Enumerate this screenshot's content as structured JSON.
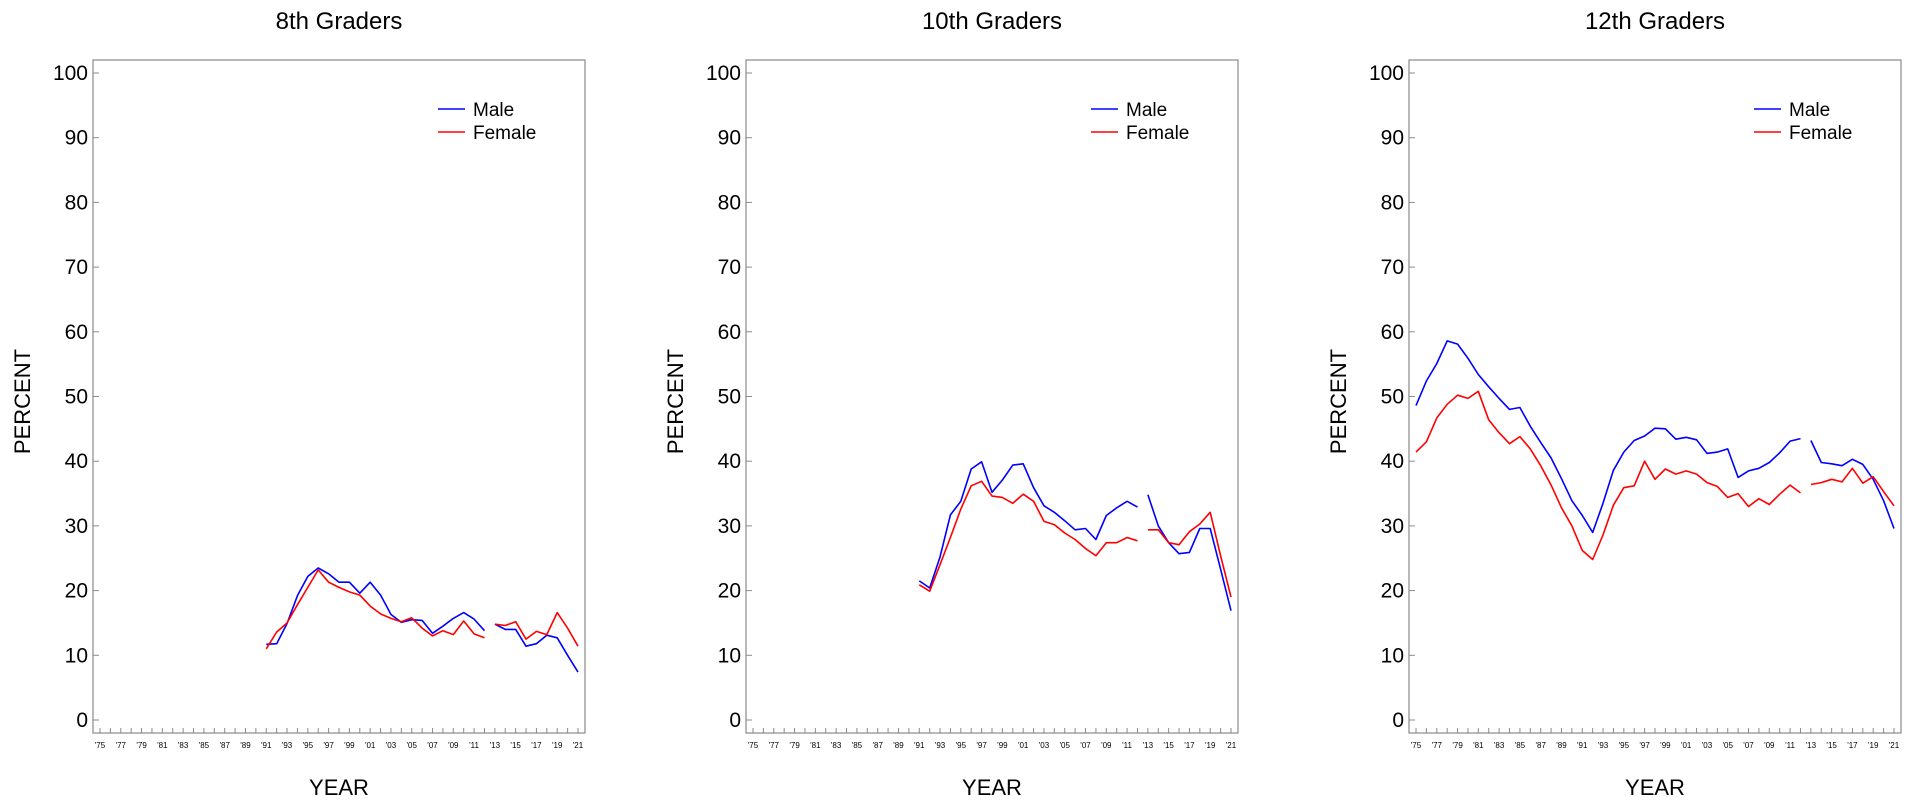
{
  "chart_data": [
    {
      "type": "line",
      "title": "8th Graders",
      "xlabel": "YEAR",
      "ylabel": "PERCENT",
      "ylim": [
        0,
        100
      ],
      "yticks": [
        0,
        10,
        20,
        30,
        40,
        50,
        60,
        70,
        80,
        90,
        100
      ],
      "xrange": [
        1975,
        2021
      ],
      "xtick_labels": [
        "'75",
        "'77",
        "'79",
        "'81",
        "'83",
        "'85",
        "'87",
        "'89",
        "'91",
        "'93",
        "'95",
        "'97",
        "'99",
        "'01",
        "'03",
        "'05",
        "'07",
        "'09",
        "'11",
        "'13",
        "'15",
        "'17",
        "'19",
        "'21"
      ],
      "legend": "top-right",
      "grid": false,
      "series": [
        {
          "name": "Male",
          "color": "#0000ff",
          "segments": [
            {
              "x": [
                1991,
                1992,
                1993,
                1994,
                1995,
                1996,
                1997,
                1998,
                1999,
                2000,
                2001,
                2002,
                2003,
                2004,
                2005,
                2006,
                2007,
                2008,
                2009,
                2010,
                2011,
                2012
              ],
              "y": [
                11.7,
                11.8,
                14.9,
                19.2,
                22.2,
                23.5,
                22.6,
                21.3,
                21.3,
                19.6,
                21.3,
                19.3,
                16.3,
                15.1,
                15.5,
                15.4,
                13.4,
                14.5,
                15.7,
                16.6,
                15.6,
                13.8
              ]
            },
            {
              "x": [
                2013,
                2014,
                2015,
                2016,
                2017,
                2018,
                2019,
                2020,
                2021
              ],
              "y": [
                14.8,
                14.0,
                14.0,
                11.4,
                11.8,
                13.1,
                12.7,
                10.0,
                7.4
              ]
            }
          ]
        },
        {
          "name": "Female",
          "color": "#ff0000",
          "segments": [
            {
              "x": [
                1991,
                1992,
                1993,
                1994,
                1995,
                1996,
                1997,
                1998,
                1999,
                2000,
                2001,
                2002,
                2003,
                2004,
                2005,
                2006,
                2007,
                2008,
                2009,
                2010,
                2011,
                2012
              ],
              "y": [
                11.0,
                13.6,
                15.0,
                17.8,
                20.5,
                23.2,
                21.3,
                20.5,
                19.8,
                19.3,
                17.6,
                16.4,
                15.7,
                15.2,
                15.8,
                14.2,
                13.0,
                13.8,
                13.2,
                15.3,
                13.3,
                12.7
              ]
            },
            {
              "x": [
                2013,
                2014,
                2015,
                2016,
                2017,
                2018,
                2019,
                2020,
                2021
              ],
              "y": [
                14.8,
                14.6,
                15.2,
                12.5,
                13.7,
                13.2,
                16.6,
                14.2,
                11.4
              ]
            }
          ]
        }
      ]
    },
    {
      "type": "line",
      "title": "10th Graders",
      "xlabel": "YEAR",
      "ylabel": "PERCENT",
      "ylim": [
        0,
        100
      ],
      "yticks": [
        0,
        10,
        20,
        30,
        40,
        50,
        60,
        70,
        80,
        90,
        100
      ],
      "xrange": [
        1975,
        2021
      ],
      "xtick_labels": [
        "'75",
        "'77",
        "'79",
        "'81",
        "'83",
        "'85",
        "'87",
        "'89",
        "'91",
        "'93",
        "'95",
        "'97",
        "'99",
        "'01",
        "'03",
        "'05",
        "'07",
        "'09",
        "'11",
        "'13",
        "'15",
        "'17",
        "'19",
        "'21"
      ],
      "legend": "top-right",
      "grid": false,
      "series": [
        {
          "name": "Male",
          "color": "#0000ff",
          "segments": [
            {
              "x": [
                1991,
                1992,
                1993,
                1994,
                1995,
                1996,
                1997,
                1998,
                1999,
                2000,
                2001,
                2002,
                2003,
                2004,
                2005,
                2006,
                2007,
                2008,
                2009,
                2010,
                2011,
                2012
              ],
              "y": [
                21.5,
                20.4,
                25.2,
                31.7,
                33.8,
                38.8,
                39.9,
                35.2,
                37.1,
                39.4,
                39.6,
                35.9,
                33.1,
                32.1,
                30.8,
                29.4,
                29.6,
                27.9,
                31.6,
                32.8,
                33.8,
                32.9
              ]
            },
            {
              "x": [
                2013,
                2014,
                2015,
                2016,
                2017,
                2018,
                2019,
                2020,
                2021
              ],
              "y": [
                34.8,
                30.0,
                27.4,
                25.7,
                25.9,
                29.6,
                29.6,
                23.3,
                16.9
              ]
            }
          ]
        },
        {
          "name": "Female",
          "color": "#ff0000",
          "segments": [
            {
              "x": [
                1991,
                1992,
                1993,
                1994,
                1995,
                1996,
                1997,
                1998,
                1999,
                2000,
                2001,
                2002,
                2003,
                2004,
                2005,
                2006,
                2007,
                2008,
                2009,
                2010,
                2011,
                2012
              ],
              "y": [
                20.9,
                19.9,
                24.0,
                28.2,
                32.6,
                36.2,
                36.9,
                34.6,
                34.4,
                33.5,
                34.9,
                33.8,
                30.7,
                30.2,
                28.9,
                27.9,
                26.5,
                25.4,
                27.4,
                27.4,
                28.2,
                27.7
              ]
            },
            {
              "x": [
                2013,
                2014,
                2015,
                2016,
                2017,
                2018,
                2019,
                2020,
                2021
              ],
              "y": [
                29.4,
                29.4,
                27.4,
                27.1,
                29.1,
                30.3,
                32.1,
                25.4,
                19.0
              ]
            }
          ]
        }
      ]
    },
    {
      "type": "line",
      "title": "12th Graders",
      "xlabel": "YEAR",
      "ylabel": "PERCENT",
      "ylim": [
        0,
        100
      ],
      "yticks": [
        0,
        10,
        20,
        30,
        40,
        50,
        60,
        70,
        80,
        90,
        100
      ],
      "xrange": [
        1975,
        2021
      ],
      "xtick_labels": [
        "'75",
        "'77",
        "'79",
        "'81",
        "'83",
        "'85",
        "'87",
        "'89",
        "'91",
        "'93",
        "'95",
        "'97",
        "'99",
        "'01",
        "'03",
        "'05",
        "'07",
        "'09",
        "'11",
        "'13",
        "'15",
        "'17",
        "'19",
        "'21"
      ],
      "legend": "top-right",
      "grid": false,
      "series": [
        {
          "name": "Male",
          "color": "#0000ff",
          "segments": [
            {
              "x": [
                1975,
                1976,
                1977,
                1978,
                1979,
                1980,
                1981,
                1982,
                1983,
                1984,
                1985,
                1986,
                1987,
                1988,
                1989,
                1990,
                1991,
                1992,
                1993,
                1994,
                1995,
                1996,
                1997,
                1998,
                1999,
                2000,
                2001,
                2002,
                2003,
                2004,
                2005,
                2006,
                2007,
                2008,
                2009,
                2010,
                2011,
                2012
              ],
              "y": [
                48.6,
                52.4,
                55.1,
                58.6,
                58.1,
                55.9,
                53.4,
                51.5,
                49.7,
                48.0,
                48.3,
                45.4,
                42.9,
                40.5,
                37.3,
                33.9,
                31.6,
                29.0,
                33.5,
                38.6,
                41.4,
                43.2,
                43.9,
                45.1,
                45.0,
                43.4,
                43.7,
                43.3,
                41.2,
                41.4,
                41.9,
                37.5,
                38.5,
                38.9,
                39.8,
                41.3,
                43.1,
                43.5
              ]
            },
            {
              "x": [
                2013,
                2014,
                2015,
                2016,
                2017,
                2018,
                2019,
                2020,
                2021
              ],
              "y": [
                43.2,
                39.8,
                39.6,
                39.3,
                40.3,
                39.5,
                37.2,
                33.9,
                29.6
              ]
            }
          ]
        },
        {
          "name": "Female",
          "color": "#ff0000",
          "segments": [
            {
              "x": [
                1975,
                1976,
                1977,
                1978,
                1979,
                1980,
                1981,
                1982,
                1983,
                1984,
                1985,
                1986,
                1987,
                1988,
                1989,
                1990,
                1991,
                1992,
                1993,
                1994,
                1995,
                1996,
                1997,
                1998,
                1999,
                2000,
                2001,
                2002,
                2003,
                2004,
                2005,
                2006,
                2007,
                2008,
                2009,
                2010,
                2011,
                2012
              ],
              "y": [
                41.4,
                43.0,
                46.7,
                48.8,
                50.2,
                49.7,
                50.8,
                46.4,
                44.4,
                42.7,
                43.8,
                41.9,
                39.3,
                36.3,
                32.8,
                30.0,
                26.2,
                24.8,
                28.6,
                33.2,
                35.9,
                36.2,
                40.0,
                37.2,
                38.8,
                38.0,
                38.5,
                38.0,
                36.7,
                36.1,
                34.4,
                35.0,
                33.0,
                34.2,
                33.3,
                34.9,
                36.3,
                35.1
              ]
            },
            {
              "x": [
                2013,
                2014,
                2015,
                2016,
                2017,
                2018,
                2019,
                2020,
                2021
              ],
              "y": [
                36.4,
                36.7,
                37.2,
                36.8,
                38.9,
                36.6,
                37.6,
                35.3,
                33.1
              ]
            }
          ]
        }
      ]
    }
  ]
}
